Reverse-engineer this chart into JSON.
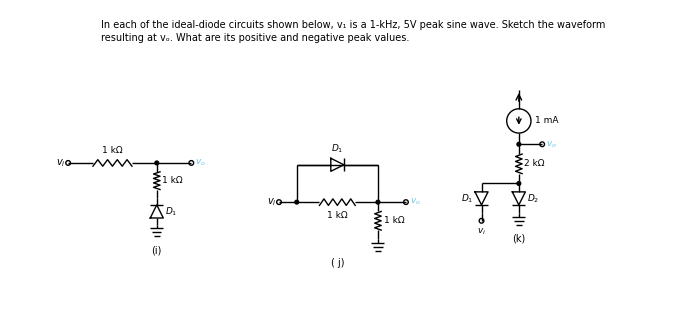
{
  "title_line1": "In each of the ideal-diode circuits shown below, v₁ is a 1-kHz, 5V peak sine wave. Sketch the waveform",
  "title_line2": "resulting at vₒ. What are its positive and negative peak values.",
  "bg_color": "#ffffff",
  "label_i": "(i)",
  "label_j": "( j)",
  "label_k": "(k)",
  "vo_color": "#6ec6e8",
  "line_color": "#000000",
  "lw": 1.0,
  "fs_title": 7.0,
  "fs_label": 7.0,
  "fs_component": 6.5
}
